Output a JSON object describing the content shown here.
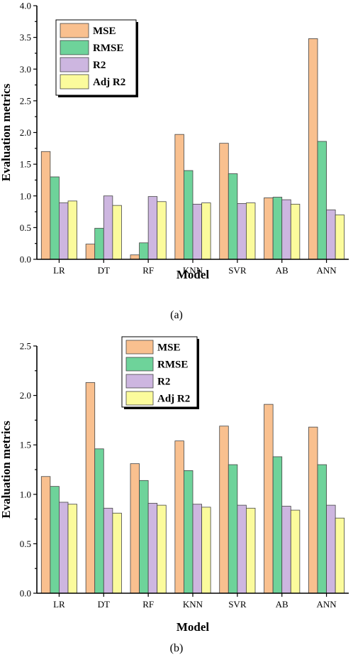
{
  "charts": [
    {
      "caption": "(a)",
      "chart_data": {
        "type": "bar",
        "categories": [
          "LR",
          "DT",
          "RF",
          "KNN",
          "SVR",
          "AB",
          "ANN"
        ],
        "series": [
          {
            "name": "MSE",
            "color": "#f9c08f",
            "values": [
              1.7,
              0.24,
              0.07,
              1.97,
              1.83,
              0.97,
              3.48
            ]
          },
          {
            "name": "RMSE",
            "color": "#6ed39a",
            "values": [
              1.3,
              0.49,
              0.26,
              1.4,
              1.35,
              0.98,
              1.86
            ]
          },
          {
            "name": "R2",
            "color": "#cdb6e0",
            "values": [
              0.89,
              1.0,
              0.99,
              0.87,
              0.88,
              0.94,
              0.78
            ]
          },
          {
            "name": "Adj R2",
            "color": "#fbfb9c",
            "values": [
              0.92,
              0.85,
              0.91,
              0.89,
              0.89,
              0.87,
              0.7
            ]
          }
        ],
        "xlabel": "Model",
        "ylabel": "Evaluation metrics",
        "ylim": [
          0,
          4.0
        ],
        "yticks": [
          "0.0",
          "0.5",
          "1.0",
          "1.5",
          "2.0",
          "2.5",
          "3.0",
          "3.5",
          "4.0"
        ],
        "grid": false,
        "legend_position": "top-left"
      }
    },
    {
      "caption": "(b)",
      "chart_data": {
        "type": "bar",
        "categories": [
          "LR",
          "DT",
          "RF",
          "KNN",
          "SVR",
          "AB",
          "ANN"
        ],
        "series": [
          {
            "name": "MSE",
            "color": "#f9c08f",
            "values": [
              1.18,
              2.13,
              1.31,
              1.54,
              1.69,
              1.91,
              1.68
            ]
          },
          {
            "name": "RMSE",
            "color": "#6ed39a",
            "values": [
              1.08,
              1.46,
              1.14,
              1.24,
              1.3,
              1.38,
              1.3
            ]
          },
          {
            "name": "R2",
            "color": "#cdb6e0",
            "values": [
              0.92,
              0.86,
              0.91,
              0.9,
              0.89,
              0.88,
              0.89
            ]
          },
          {
            "name": "Adj R2",
            "color": "#fbfb9c",
            "values": [
              0.9,
              0.81,
              0.89,
              0.87,
              0.86,
              0.84,
              0.76
            ]
          }
        ],
        "xlabel": "Model",
        "ylabel": "Evaluation metrics",
        "ylim": [
          0,
          2.5
        ],
        "yticks": [
          "0.0",
          "0.5",
          "1.0",
          "1.5",
          "2.0",
          "2.5"
        ],
        "grid": false,
        "legend_position": "top-center"
      }
    }
  ]
}
